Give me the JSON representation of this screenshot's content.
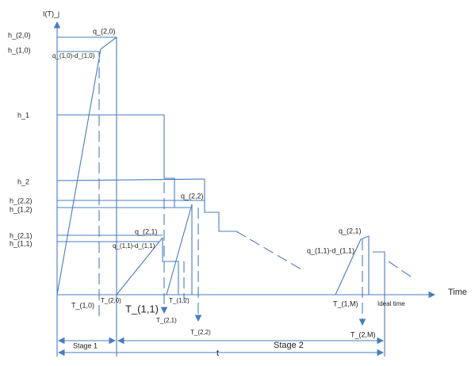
{
  "axes": {
    "y_label": "I(T)_j",
    "x_label": "Time"
  },
  "levels": [
    "h_(2,0)",
    "h_(1,0)",
    "h_1",
    "h_2",
    "h_(2,2)",
    "h_(1,2)",
    "h_(2,1)",
    "h_(1,1)"
  ],
  "quantities": [
    "q_(2,0)",
    "q_(1,0)-d_(1,0)",
    "q_(2,2)",
    "q_(2,1)",
    "q_(1,1)-d_(1,1)",
    "q_(2,1)",
    "q_(1,1)-d_(1,1)"
  ],
  "times": [
    "T_(1,0)",
    "T_(2,0)",
    "T_(1,1)",
    "T_(2,1)",
    "T_(1,2)",
    "T_(2,2)",
    "T_(1,M)",
    "Ideal time",
    "T_(2,M)"
  ],
  "stages": {
    "stage1": "Stage 1",
    "stage2": "Stage 2",
    "total": "t"
  }
}
